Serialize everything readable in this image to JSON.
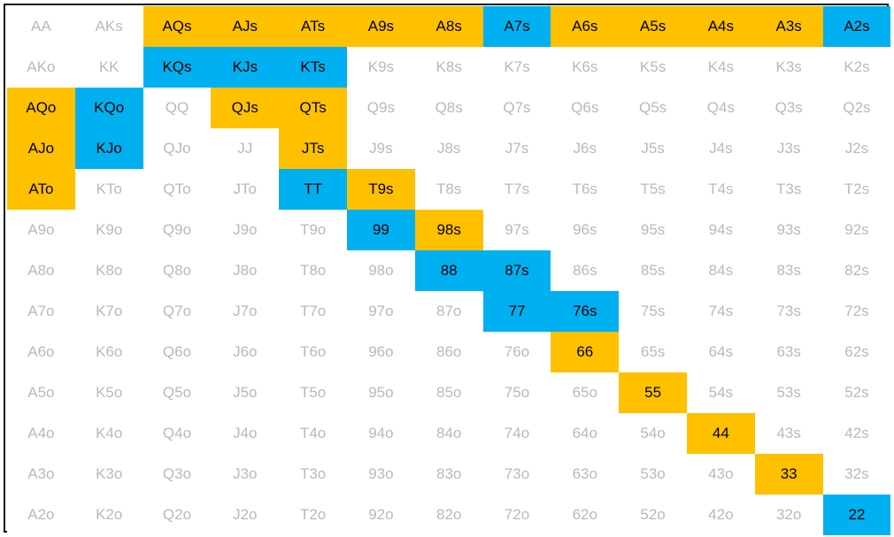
{
  "colors": {
    "raise": "#ffc000",
    "call": "#00b0f0",
    "fold_text": "#b9b9b9",
    "active_text": "#000000",
    "border": "#111111"
  },
  "rows": [
    [
      {
        "label": "AA",
        "action": "fold"
      },
      {
        "label": "AKs",
        "action": "fold"
      },
      {
        "label": "AQs",
        "action": "raise"
      },
      {
        "label": "AJs",
        "action": "raise"
      },
      {
        "label": "ATs",
        "action": "raise"
      },
      {
        "label": "A9s",
        "action": "raise"
      },
      {
        "label": "A8s",
        "action": "raise"
      },
      {
        "label": "A7s",
        "action": "call"
      },
      {
        "label": "A6s",
        "action": "raise"
      },
      {
        "label": "A5s",
        "action": "raise"
      },
      {
        "label": "A4s",
        "action": "raise"
      },
      {
        "label": "A3s",
        "action": "raise"
      },
      {
        "label": "A2s",
        "action": "call"
      }
    ],
    [
      {
        "label": "AKo",
        "action": "fold"
      },
      {
        "label": "KK",
        "action": "fold"
      },
      {
        "label": "KQs",
        "action": "call"
      },
      {
        "label": "KJs",
        "action": "call"
      },
      {
        "label": "KTs",
        "action": "call"
      },
      {
        "label": "K9s",
        "action": "fold"
      },
      {
        "label": "K8s",
        "action": "fold"
      },
      {
        "label": "K7s",
        "action": "fold"
      },
      {
        "label": "K6s",
        "action": "fold"
      },
      {
        "label": "K5s",
        "action": "fold"
      },
      {
        "label": "K4s",
        "action": "fold"
      },
      {
        "label": "K3s",
        "action": "fold"
      },
      {
        "label": "K2s",
        "action": "fold"
      }
    ],
    [
      {
        "label": "AQo",
        "action": "raise"
      },
      {
        "label": "KQo",
        "action": "call"
      },
      {
        "label": "QQ",
        "action": "fold"
      },
      {
        "label": "QJs",
        "action": "raise"
      },
      {
        "label": "QTs",
        "action": "raise"
      },
      {
        "label": "Q9s",
        "action": "fold"
      },
      {
        "label": "Q8s",
        "action": "fold"
      },
      {
        "label": "Q7s",
        "action": "fold"
      },
      {
        "label": "Q6s",
        "action": "fold"
      },
      {
        "label": "Q5s",
        "action": "fold"
      },
      {
        "label": "Q4s",
        "action": "fold"
      },
      {
        "label": "Q3s",
        "action": "fold"
      },
      {
        "label": "Q2s",
        "action": "fold"
      }
    ],
    [
      {
        "label": "AJo",
        "action": "raise"
      },
      {
        "label": "KJo",
        "action": "call"
      },
      {
        "label": "QJo",
        "action": "fold"
      },
      {
        "label": "JJ",
        "action": "fold"
      },
      {
        "label": "JTs",
        "action": "raise"
      },
      {
        "label": "J9s",
        "action": "fold"
      },
      {
        "label": "J8s",
        "action": "fold"
      },
      {
        "label": "J7s",
        "action": "fold"
      },
      {
        "label": "J6s",
        "action": "fold"
      },
      {
        "label": "J5s",
        "action": "fold"
      },
      {
        "label": "J4s",
        "action": "fold"
      },
      {
        "label": "J3s",
        "action": "fold"
      },
      {
        "label": "J2s",
        "action": "fold"
      }
    ],
    [
      {
        "label": "ATo",
        "action": "raise"
      },
      {
        "label": "KTo",
        "action": "fold"
      },
      {
        "label": "QTo",
        "action": "fold"
      },
      {
        "label": "JTo",
        "action": "fold"
      },
      {
        "label": "TT",
        "action": "call"
      },
      {
        "label": "T9s",
        "action": "raise"
      },
      {
        "label": "T8s",
        "action": "fold"
      },
      {
        "label": "T7s",
        "action": "fold"
      },
      {
        "label": "T6s",
        "action": "fold"
      },
      {
        "label": "T5s",
        "action": "fold"
      },
      {
        "label": "T4s",
        "action": "fold"
      },
      {
        "label": "T3s",
        "action": "fold"
      },
      {
        "label": "T2s",
        "action": "fold"
      }
    ],
    [
      {
        "label": "A9o",
        "action": "fold"
      },
      {
        "label": "K9o",
        "action": "fold"
      },
      {
        "label": "Q9o",
        "action": "fold"
      },
      {
        "label": "J9o",
        "action": "fold"
      },
      {
        "label": "T9o",
        "action": "fold"
      },
      {
        "label": "99",
        "action": "call"
      },
      {
        "label": "98s",
        "action": "raise"
      },
      {
        "label": "97s",
        "action": "fold"
      },
      {
        "label": "96s",
        "action": "fold"
      },
      {
        "label": "95s",
        "action": "fold"
      },
      {
        "label": "94s",
        "action": "fold"
      },
      {
        "label": "93s",
        "action": "fold"
      },
      {
        "label": "92s",
        "action": "fold"
      }
    ],
    [
      {
        "label": "A8o",
        "action": "fold"
      },
      {
        "label": "K8o",
        "action": "fold"
      },
      {
        "label": "Q8o",
        "action": "fold"
      },
      {
        "label": "J8o",
        "action": "fold"
      },
      {
        "label": "T8o",
        "action": "fold"
      },
      {
        "label": "98o",
        "action": "fold"
      },
      {
        "label": "88",
        "action": "call"
      },
      {
        "label": "87s",
        "action": "call"
      },
      {
        "label": "86s",
        "action": "fold"
      },
      {
        "label": "85s",
        "action": "fold"
      },
      {
        "label": "84s",
        "action": "fold"
      },
      {
        "label": "83s",
        "action": "fold"
      },
      {
        "label": "82s",
        "action": "fold"
      }
    ],
    [
      {
        "label": "A7o",
        "action": "fold"
      },
      {
        "label": "K7o",
        "action": "fold"
      },
      {
        "label": "Q7o",
        "action": "fold"
      },
      {
        "label": "J7o",
        "action": "fold"
      },
      {
        "label": "T7o",
        "action": "fold"
      },
      {
        "label": "97o",
        "action": "fold"
      },
      {
        "label": "87o",
        "action": "fold"
      },
      {
        "label": "77",
        "action": "call"
      },
      {
        "label": "76s",
        "action": "call"
      },
      {
        "label": "75s",
        "action": "fold"
      },
      {
        "label": "74s",
        "action": "fold"
      },
      {
        "label": "73s",
        "action": "fold"
      },
      {
        "label": "72s",
        "action": "fold"
      }
    ],
    [
      {
        "label": "A6o",
        "action": "fold"
      },
      {
        "label": "K6o",
        "action": "fold"
      },
      {
        "label": "Q6o",
        "action": "fold"
      },
      {
        "label": "J6o",
        "action": "fold"
      },
      {
        "label": "T6o",
        "action": "fold"
      },
      {
        "label": "96o",
        "action": "fold"
      },
      {
        "label": "86o",
        "action": "fold"
      },
      {
        "label": "76o",
        "action": "fold"
      },
      {
        "label": "66",
        "action": "raise"
      },
      {
        "label": "65s",
        "action": "fold"
      },
      {
        "label": "64s",
        "action": "fold"
      },
      {
        "label": "63s",
        "action": "fold"
      },
      {
        "label": "62s",
        "action": "fold"
      }
    ],
    [
      {
        "label": "A5o",
        "action": "fold"
      },
      {
        "label": "K5o",
        "action": "fold"
      },
      {
        "label": "Q5o",
        "action": "fold"
      },
      {
        "label": "J5o",
        "action": "fold"
      },
      {
        "label": "T5o",
        "action": "fold"
      },
      {
        "label": "95o",
        "action": "fold"
      },
      {
        "label": "85o",
        "action": "fold"
      },
      {
        "label": "75o",
        "action": "fold"
      },
      {
        "label": "65o",
        "action": "fold"
      },
      {
        "label": "55",
        "action": "raise"
      },
      {
        "label": "54s",
        "action": "fold"
      },
      {
        "label": "53s",
        "action": "fold"
      },
      {
        "label": "52s",
        "action": "fold"
      }
    ],
    [
      {
        "label": "A4o",
        "action": "fold"
      },
      {
        "label": "K4o",
        "action": "fold"
      },
      {
        "label": "Q4o",
        "action": "fold"
      },
      {
        "label": "J4o",
        "action": "fold"
      },
      {
        "label": "T4o",
        "action": "fold"
      },
      {
        "label": "94o",
        "action": "fold"
      },
      {
        "label": "84o",
        "action": "fold"
      },
      {
        "label": "74o",
        "action": "fold"
      },
      {
        "label": "64o",
        "action": "fold"
      },
      {
        "label": "54o",
        "action": "fold"
      },
      {
        "label": "44",
        "action": "raise"
      },
      {
        "label": "43s",
        "action": "fold"
      },
      {
        "label": "42s",
        "action": "fold"
      }
    ],
    [
      {
        "label": "A3o",
        "action": "fold"
      },
      {
        "label": "K3o",
        "action": "fold"
      },
      {
        "label": "Q3o",
        "action": "fold"
      },
      {
        "label": "J3o",
        "action": "fold"
      },
      {
        "label": "T3o",
        "action": "fold"
      },
      {
        "label": "93o",
        "action": "fold"
      },
      {
        "label": "83o",
        "action": "fold"
      },
      {
        "label": "73o",
        "action": "fold"
      },
      {
        "label": "63o",
        "action": "fold"
      },
      {
        "label": "53o",
        "action": "fold"
      },
      {
        "label": "43o",
        "action": "fold"
      },
      {
        "label": "33",
        "action": "raise"
      },
      {
        "label": "32s",
        "action": "fold"
      }
    ],
    [
      {
        "label": "A2o",
        "action": "fold"
      },
      {
        "label": "K2o",
        "action": "fold"
      },
      {
        "label": "Q2o",
        "action": "fold"
      },
      {
        "label": "J2o",
        "action": "fold"
      },
      {
        "label": "T2o",
        "action": "fold"
      },
      {
        "label": "92o",
        "action": "fold"
      },
      {
        "label": "82o",
        "action": "fold"
      },
      {
        "label": "72o",
        "action": "fold"
      },
      {
        "label": "62o",
        "action": "fold"
      },
      {
        "label": "52o",
        "action": "fold"
      },
      {
        "label": "42o",
        "action": "fold"
      },
      {
        "label": "32o",
        "action": "fold"
      },
      {
        "label": "22",
        "action": "call"
      }
    ]
  ]
}
